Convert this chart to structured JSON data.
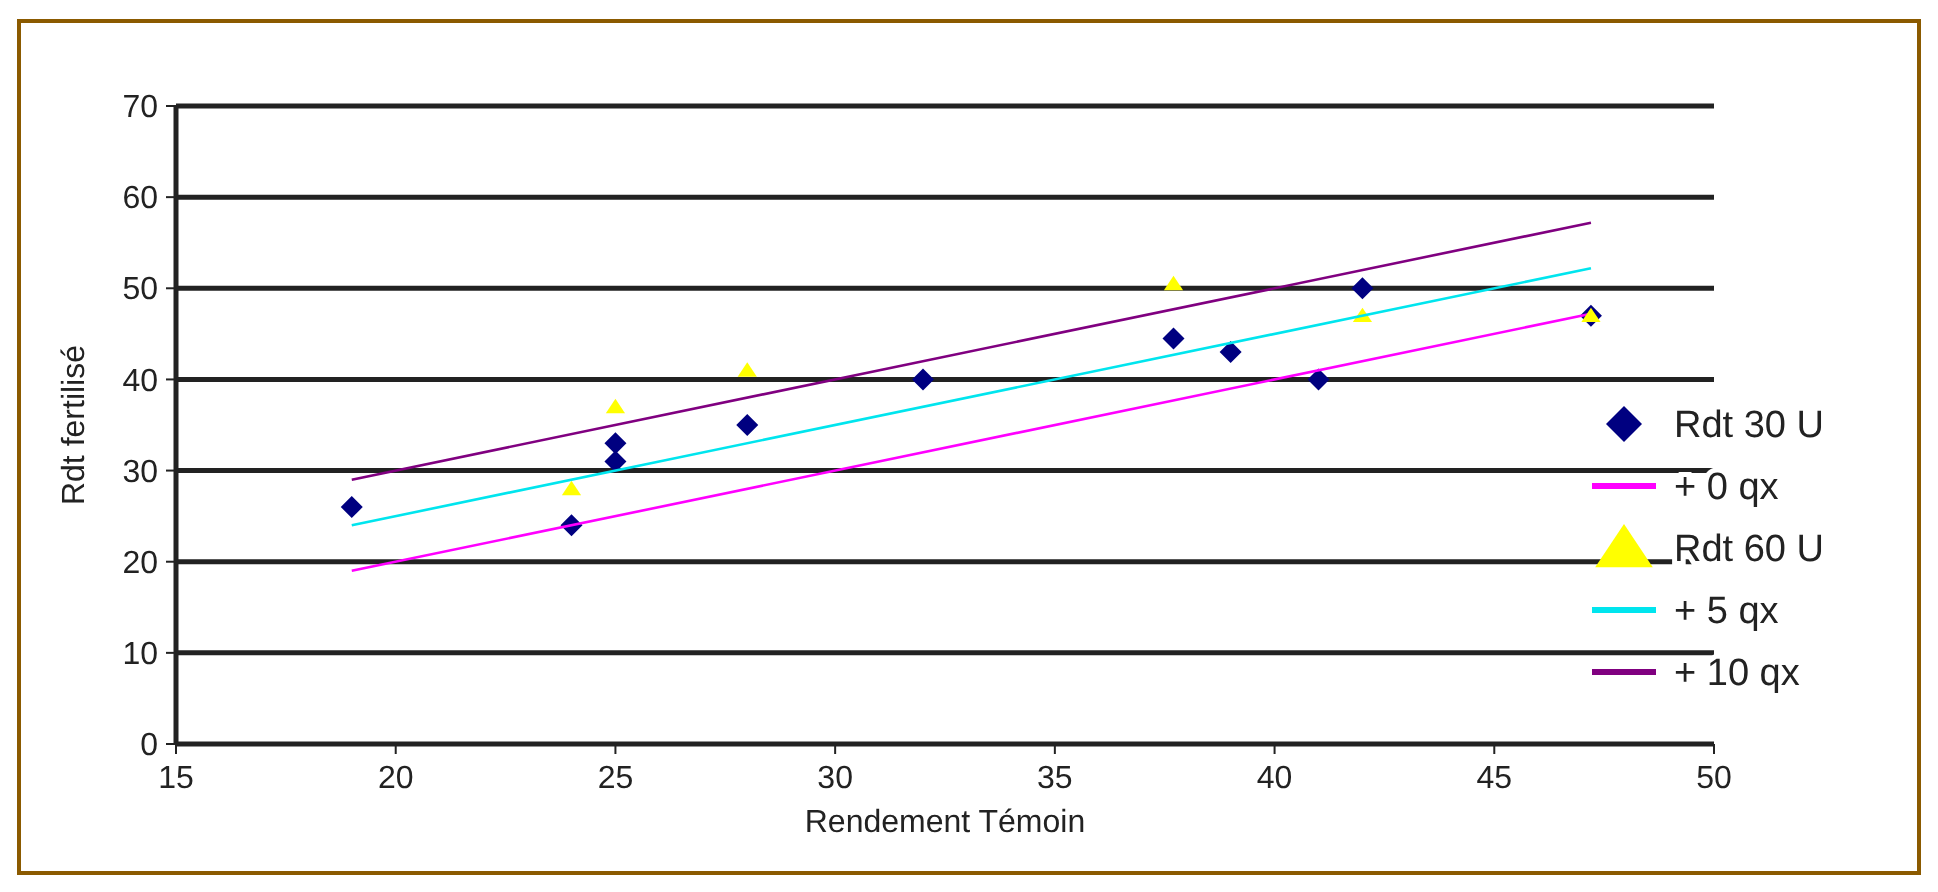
{
  "chart_data": {
    "type": "scatter",
    "xlabel": "Rendement Témoin",
    "ylabel": "Rdt fertilisé",
    "xlim": [
      15,
      50
    ],
    "xticks": [
      15,
      20,
      25,
      30,
      35,
      40,
      45,
      50
    ],
    "ylim": [
      0,
      70
    ],
    "yticks": [
      0,
      10,
      20,
      30,
      40,
      50,
      60,
      70
    ],
    "grid": "y",
    "legend": "right",
    "series": [
      {
        "name": "Rdt 30 U",
        "marker": "diamond",
        "color": "#000080",
        "x": [
          19,
          24,
          25,
          25,
          28,
          32,
          37.7,
          39,
          41,
          42,
          47.2
        ],
        "values": [
          26,
          24,
          33,
          31,
          35,
          40,
          44.5,
          43,
          40,
          50,
          47
        ]
      },
      {
        "name": "+ 0 qx",
        "type": "line",
        "color": "#ff00ff",
        "x": [
          19,
          47.2
        ],
        "values": [
          19,
          47.2
        ]
      },
      {
        "name": "Rdt 60 U",
        "marker": "triangle",
        "color": "#ffff00",
        "x": [
          24,
          25,
          28,
          37.7,
          42,
          47.2
        ],
        "values": [
          28,
          37,
          41,
          50.5,
          47,
          47
        ]
      },
      {
        "name": "+ 5 qx",
        "type": "line",
        "color": "#00e5ee",
        "x": [
          19,
          47.2
        ],
        "values": [
          24,
          52.2
        ]
      },
      {
        "name": "+ 10 qx",
        "type": "line",
        "color": "#800080",
        "x": [
          19,
          47.2
        ],
        "values": [
          29,
          57.2
        ]
      }
    ]
  }
}
